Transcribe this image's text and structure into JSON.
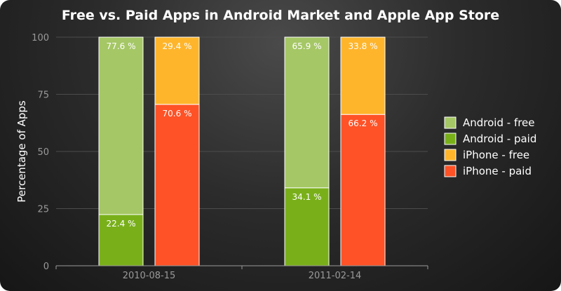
{
  "chart_data": {
    "type": "bar",
    "stacked": true,
    "title": "Free vs. Paid Apps in Android Market and Apple App Store",
    "ylabel": "Percentage of Apps",
    "xlabel": "",
    "ylim": [
      0,
      100
    ],
    "yticks": [
      0,
      25,
      50,
      75,
      100
    ],
    "grid": true,
    "legend_position": "right",
    "categories": [
      "2010-08-15",
      "2011-02-14"
    ],
    "groups": [
      {
        "name": "Android",
        "series": [
          {
            "name": "Android - paid",
            "color": "#79b01a",
            "values": [
              22.4,
              34.1
            ],
            "labels": [
              "22.4 %",
              "34.1 %"
            ]
          },
          {
            "name": "Android - free",
            "color": "#a5c765",
            "values": [
              77.6,
              65.9
            ],
            "labels": [
              "77.6 %",
              "65.9 %"
            ]
          }
        ]
      },
      {
        "name": "iPhone",
        "series": [
          {
            "name": "iPhone - paid",
            "color": "#ff5226",
            "values": [
              70.6,
              66.2
            ],
            "labels": [
              "70.6 %",
              "66.2 %"
            ]
          },
          {
            "name": "iPhone - free",
            "color": "#ffb52b",
            "values": [
              29.4,
              33.8
            ],
            "labels": [
              "29.4 %",
              "33.8 %"
            ]
          }
        ]
      }
    ],
    "legend": [
      {
        "label": "Android - free",
        "color": "#a5c765"
      },
      {
        "label": "Android - paid",
        "color": "#79b01a"
      },
      {
        "label": "iPhone - free",
        "color": "#ffb52b"
      },
      {
        "label": "iPhone - paid",
        "color": "#ff5226"
      }
    ]
  }
}
